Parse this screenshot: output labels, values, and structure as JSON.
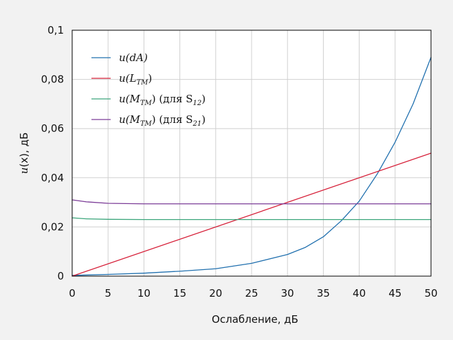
{
  "chart_data": {
    "type": "line",
    "title": "",
    "xlabel": "Ослабление, дБ",
    "ylabel_parts": {
      "italic": "u",
      "rest": "(x), дБ"
    },
    "xlim": [
      0,
      50
    ],
    "ylim": [
      0,
      0.1
    ],
    "xticks": [
      0,
      5,
      10,
      15,
      20,
      25,
      30,
      35,
      40,
      45,
      50
    ],
    "xtick_labels": [
      "0",
      "5",
      "10",
      "15",
      "20",
      "25",
      "30",
      "35",
      "40",
      "45",
      "50"
    ],
    "yticks": [
      0,
      0.02,
      0.04,
      0.06,
      0.08,
      0.1
    ],
    "ytick_labels": [
      "0",
      "0,02",
      "0,04",
      "0,06",
      "0,08",
      "0,1"
    ],
    "grid": true,
    "legend_position": "top-left",
    "series": [
      {
        "name": "u(dA)",
        "legend": {
          "prefix": "u(dA)",
          "sub": "",
          "suffix": "",
          "sub2": ""
        },
        "color": "#1f6fae",
        "x": [
          0,
          5,
          10,
          15,
          20,
          25,
          30,
          32.5,
          35,
          37.5,
          40,
          42.5,
          45,
          47.5,
          50
        ],
        "y": [
          0.0003,
          0.0007,
          0.0012,
          0.002,
          0.003,
          0.0052,
          0.0088,
          0.0117,
          0.016,
          0.0225,
          0.0305,
          0.0415,
          0.0545,
          0.07,
          0.089
        ]
      },
      {
        "name": "u(L_TM)",
        "legend": {
          "prefix": "u(L",
          "sub": "TM",
          "suffix": ")",
          "sub2": ""
        },
        "color": "#d62039",
        "x": [
          0,
          50
        ],
        "y": [
          0.0,
          0.05
        ]
      },
      {
        "name": "u(M_TM) (для S12)",
        "legend": {
          "prefix": "u(M",
          "sub": "TM",
          "suffix": ") (для S",
          "sub2": "12"
        },
        "color": "#3aa57a",
        "x": [
          0,
          2,
          5,
          10,
          15,
          20,
          30,
          40,
          50
        ],
        "y": [
          0.0237,
          0.0233,
          0.0231,
          0.023,
          0.023,
          0.023,
          0.023,
          0.023,
          0.023
        ]
      },
      {
        "name": "u(M_TM) (для S21)",
        "legend": {
          "prefix": "u(M",
          "sub": "TM",
          "suffix": ") (для S",
          "sub2": "21"
        },
        "color": "#7a3a96",
        "x": [
          0,
          2,
          5,
          10,
          15,
          20,
          30,
          40,
          50
        ],
        "y": [
          0.031,
          0.0302,
          0.0296,
          0.0294,
          0.0294,
          0.0294,
          0.0294,
          0.0294,
          0.0294
        ]
      }
    ]
  }
}
